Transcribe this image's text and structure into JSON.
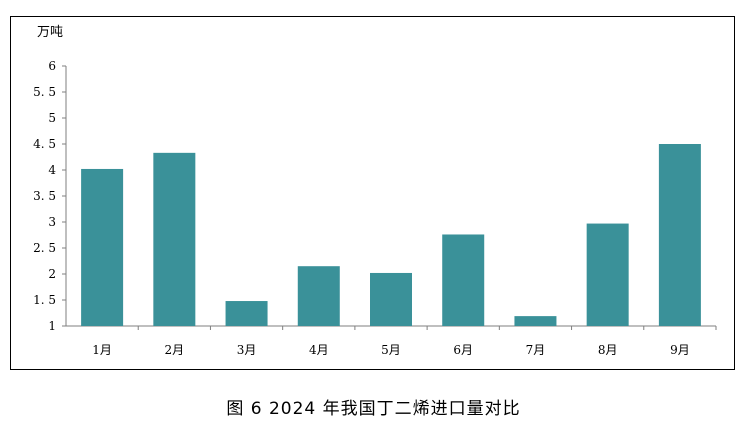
{
  "caption": "图 6 2024 年我国丁二烯进口量对比",
  "chart_data": {
    "type": "bar",
    "unit_label": "万吨",
    "categories": [
      "1月",
      "2月",
      "3月",
      "4月",
      "5月",
      "6月",
      "7月",
      "8月",
      "9月"
    ],
    "values": [
      4.02,
      4.33,
      1.48,
      2.15,
      2.02,
      2.76,
      1.19,
      2.97,
      4.5
    ],
    "ylim": [
      1,
      6
    ],
    "yticks": [
      "1",
      "1.5",
      "2",
      "2.5",
      "3",
      "3.5",
      "4",
      "4.5",
      "5",
      "5.5",
      "6"
    ],
    "bar_color": "#3a9199",
    "grid": false,
    "legend": "none"
  }
}
